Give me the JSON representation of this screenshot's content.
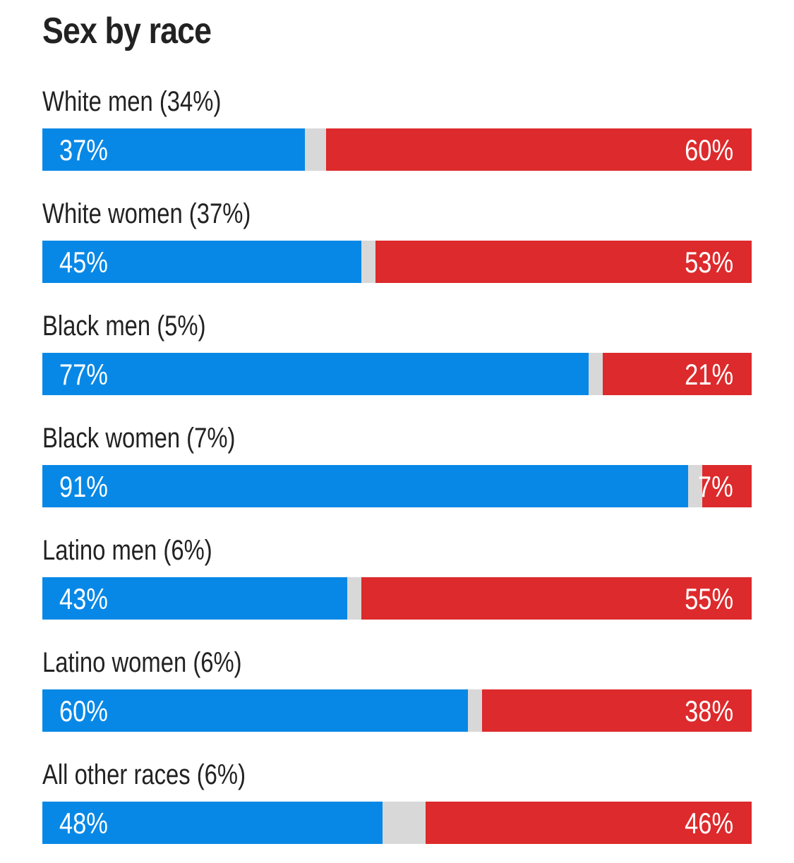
{
  "chart_data": {
    "type": "bar",
    "orientation": "horizontal-stacked",
    "title": "Sex by race",
    "categories": [
      "White men (34%)",
      "White women (37%)",
      "Black men (5%)",
      "Black women (7%)",
      "Latino men (6%)",
      "Latino women (6%)",
      "All other races (6%)"
    ],
    "series": [
      {
        "color": "#0888e6",
        "values": [
          37,
          45,
          77,
          91,
          43,
          60,
          48
        ],
        "labels": [
          "37%",
          "45%",
          "77%",
          "91%",
          "43%",
          "60%",
          "48%"
        ]
      },
      {
        "color": "#dd2a2c",
        "values": [
          60,
          53,
          21,
          7,
          55,
          38,
          46
        ],
        "labels": [
          "60%",
          "53%",
          "21%",
          "7%",
          "55%",
          "38%",
          "46%"
        ]
      }
    ],
    "remainder_color": "#d8d8d8",
    "xlim": [
      0,
      100
    ]
  }
}
